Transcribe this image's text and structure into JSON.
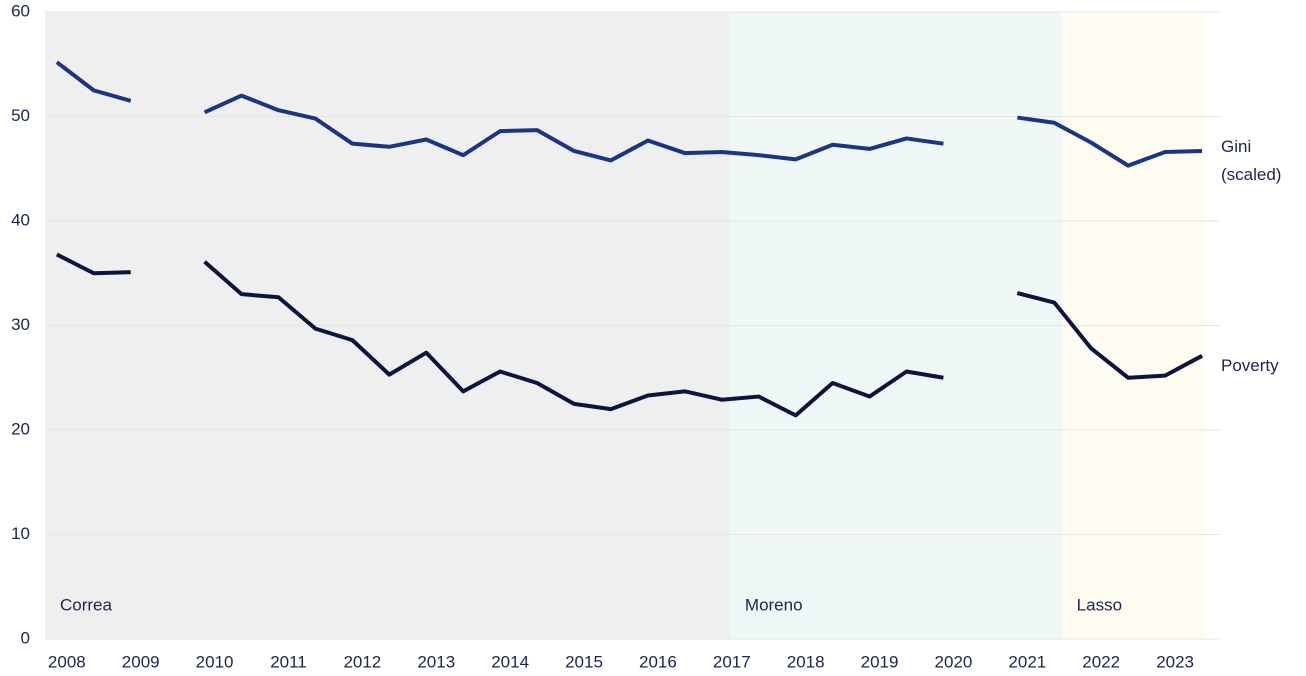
{
  "chart_data": {
    "type": "line",
    "x": [
      2008,
      2008.5,
      2009,
      2009.5,
      2010,
      2010.5,
      2011,
      2011.5,
      2012,
      2012.5,
      2013,
      2013.5,
      2014,
      2014.5,
      2015,
      2015.5,
      2016,
      2016.5,
      2017,
      2017.5,
      2018,
      2018.5,
      2019,
      2019.5,
      2020,
      2020.5,
      2021,
      2021.5,
      2022,
      2022.5,
      2023,
      2023.5
    ],
    "series": [
      {
        "name": "Gini (scaled)",
        "color": "#1b3585",
        "values": [
          55.2,
          52.5,
          51.5,
          null,
          50.4,
          52.0,
          50.6,
          49.8,
          47.4,
          47.1,
          47.8,
          46.3,
          48.6,
          48.7,
          46.7,
          45.8,
          47.7,
          46.5,
          46.6,
          46.3,
          45.9,
          47.3,
          46.9,
          47.9,
          47.4,
          null,
          49.9,
          49.4,
          47.5,
          45.3,
          46.6,
          46.7
        ]
      },
      {
        "name": "Poverty",
        "color": "#0e1442",
        "values": [
          36.8,
          35.0,
          35.1,
          null,
          36.1,
          33.0,
          32.7,
          29.7,
          28.6,
          25.3,
          27.4,
          23.7,
          25.6,
          24.5,
          22.5,
          22.0,
          23.3,
          23.7,
          22.9,
          23.2,
          21.4,
          24.5,
          23.2,
          25.6,
          25.0,
          null,
          33.1,
          32.2,
          27.8,
          25.0,
          25.2,
          27.1
        ]
      }
    ],
    "periods": [
      {
        "label": "Correa",
        "start": 2007.84,
        "end": 2017.11,
        "color": "#efeff0"
      },
      {
        "label": "Moreno",
        "start": 2017.11,
        "end": 2021.6,
        "color": "#f0f7f7"
      },
      {
        "label": "Lasso",
        "start": 2021.6,
        "end": 2023.54,
        "color": "#fefcf0"
      }
    ],
    "xlim": [
      2007.84,
      2023.54
    ],
    "xticks": [
      2008,
      2009,
      2010,
      2011,
      2012,
      2013,
      2014,
      2015,
      2016,
      2017,
      2018,
      2019,
      2020,
      2021,
      2022,
      2023
    ],
    "ylim": [
      0,
      60
    ],
    "yticks": [
      0,
      10,
      20,
      30,
      40,
      50,
      60
    ],
    "grid": true
  }
}
